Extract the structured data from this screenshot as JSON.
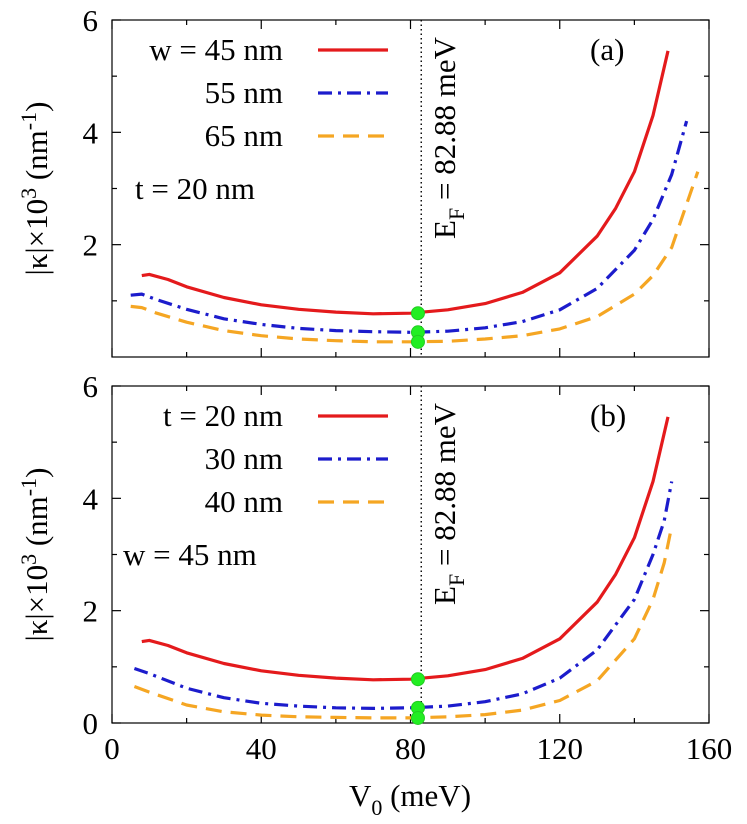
{
  "chart_data": [
    {
      "type": "line",
      "panel_label": "(a)",
      "title": "",
      "ylabel": "|κ|×10³ (nm⁻¹)",
      "ylabel_parts": {
        "base": "|κ|×10",
        "sup1": "3",
        "mid": " (nm",
        "sup2": "-1",
        "end": ")"
      },
      "xlim": [
        0,
        160
      ],
      "ylim": [
        0,
        6
      ],
      "xticks": [
        0,
        40,
        80,
        120,
        160
      ],
      "yticks": [
        2,
        4,
        6
      ],
      "show_xticklabels": false,
      "vline": {
        "x": 82.88
      },
      "annotation": {
        "base": "E",
        "sub": "F",
        "rest": " = 82.88 meV"
      },
      "legend": {
        "lines": [
          "w = 45 nm",
          "55 nm",
          "65 nm"
        ],
        "extra": "t = 20 nm"
      },
      "markers": [
        {
          "x": 82,
          "y": 0.78
        },
        {
          "x": 82,
          "y": 0.44
        },
        {
          "x": 82,
          "y": 0.27
        }
      ],
      "series": [
        {
          "name": "w = 45 nm",
          "color": "#e41a1c",
          "dash": "solid",
          "x": [
            8,
            10,
            15,
            20,
            30,
            40,
            50,
            60,
            70,
            80,
            90,
            100,
            110,
            120,
            130,
            135,
            140,
            145,
            149
          ],
          "y": [
            1.45,
            1.47,
            1.38,
            1.25,
            1.06,
            0.93,
            0.85,
            0.8,
            0.77,
            0.78,
            0.84,
            0.95,
            1.15,
            1.5,
            2.15,
            2.65,
            3.3,
            4.3,
            5.45
          ]
        },
        {
          "name": "55 nm",
          "color": "#1c1ccc",
          "dash": "dashdot",
          "x": [
            5,
            8,
            12,
            20,
            30,
            40,
            50,
            60,
            70,
            80,
            90,
            100,
            110,
            120,
            130,
            140,
            145,
            150,
            154
          ],
          "y": [
            1.1,
            1.12,
            1.02,
            0.85,
            0.68,
            0.58,
            0.51,
            0.47,
            0.45,
            0.44,
            0.46,
            0.52,
            0.63,
            0.84,
            1.22,
            1.9,
            2.45,
            3.25,
            4.2
          ]
        },
        {
          "name": "65 nm",
          "color": "#f5a623",
          "dash": "dashed",
          "x": [
            5,
            8,
            12,
            20,
            30,
            40,
            50,
            60,
            70,
            80,
            90,
            100,
            110,
            120,
            130,
            140,
            145,
            150,
            157
          ],
          "y": [
            0.9,
            0.88,
            0.78,
            0.62,
            0.47,
            0.38,
            0.32,
            0.29,
            0.27,
            0.27,
            0.28,
            0.32,
            0.38,
            0.5,
            0.72,
            1.12,
            1.45,
            1.95,
            3.3
          ]
        }
      ]
    },
    {
      "type": "line",
      "panel_label": "(b)",
      "title": "",
      "xlabel": "V₀ (meV)",
      "xlabel_parts": {
        "base": "V",
        "sub": "0",
        "rest": " (meV)"
      },
      "ylabel": "|κ|×10³ (nm⁻¹)",
      "ylabel_parts": {
        "base": "|κ|×10",
        "sup1": "3",
        "mid": " (nm",
        "sup2": "-1",
        "end": ")"
      },
      "xlim": [
        0,
        160
      ],
      "ylim": [
        0,
        6
      ],
      "xticks": [
        0,
        40,
        80,
        120,
        160
      ],
      "yticks": [
        0,
        2,
        4,
        6
      ],
      "show_xticklabels": true,
      "vline": {
        "x": 82.88
      },
      "annotation": {
        "base": "E",
        "sub": "F",
        "rest": " = 82.88 meV"
      },
      "legend": {
        "lines": [
          "t = 20 nm",
          "30 nm",
          "40 nm"
        ],
        "extra": "w = 45 nm"
      },
      "markers": [
        {
          "x": 82,
          "y": 0.78
        },
        {
          "x": 82,
          "y": 0.27
        },
        {
          "x": 82,
          "y": 0.09
        }
      ],
      "series": [
        {
          "name": "t = 20 nm",
          "color": "#e41a1c",
          "dash": "solid",
          "x": [
            8,
            10,
            15,
            20,
            30,
            40,
            50,
            60,
            70,
            80,
            90,
            100,
            110,
            120,
            130,
            135,
            140,
            145,
            149
          ],
          "y": [
            1.45,
            1.47,
            1.38,
            1.25,
            1.06,
            0.93,
            0.85,
            0.8,
            0.77,
            0.78,
            0.84,
            0.95,
            1.15,
            1.5,
            2.15,
            2.65,
            3.3,
            4.3,
            5.45
          ]
        },
        {
          "name": "30 nm",
          "color": "#1c1ccc",
          "dash": "dashdot",
          "x": [
            6,
            10,
            20,
            30,
            40,
            50,
            60,
            70,
            80,
            90,
            100,
            110,
            120,
            130,
            140,
            145,
            148,
            150
          ],
          "y": [
            0.97,
            0.88,
            0.62,
            0.45,
            0.35,
            0.3,
            0.27,
            0.26,
            0.27,
            0.3,
            0.38,
            0.52,
            0.8,
            1.3,
            2.2,
            3.0,
            3.6,
            4.3
          ]
        },
        {
          "name": "40 nm",
          "color": "#f5a623",
          "dash": "dashed",
          "x": [
            6,
            10,
            20,
            30,
            40,
            50,
            60,
            70,
            80,
            90,
            100,
            110,
            120,
            130,
            140,
            145,
            148,
            150
          ],
          "y": [
            0.65,
            0.55,
            0.32,
            0.2,
            0.14,
            0.11,
            0.1,
            0.09,
            0.09,
            0.11,
            0.15,
            0.23,
            0.4,
            0.75,
            1.5,
            2.2,
            2.85,
            3.5
          ]
        }
      ]
    }
  ]
}
